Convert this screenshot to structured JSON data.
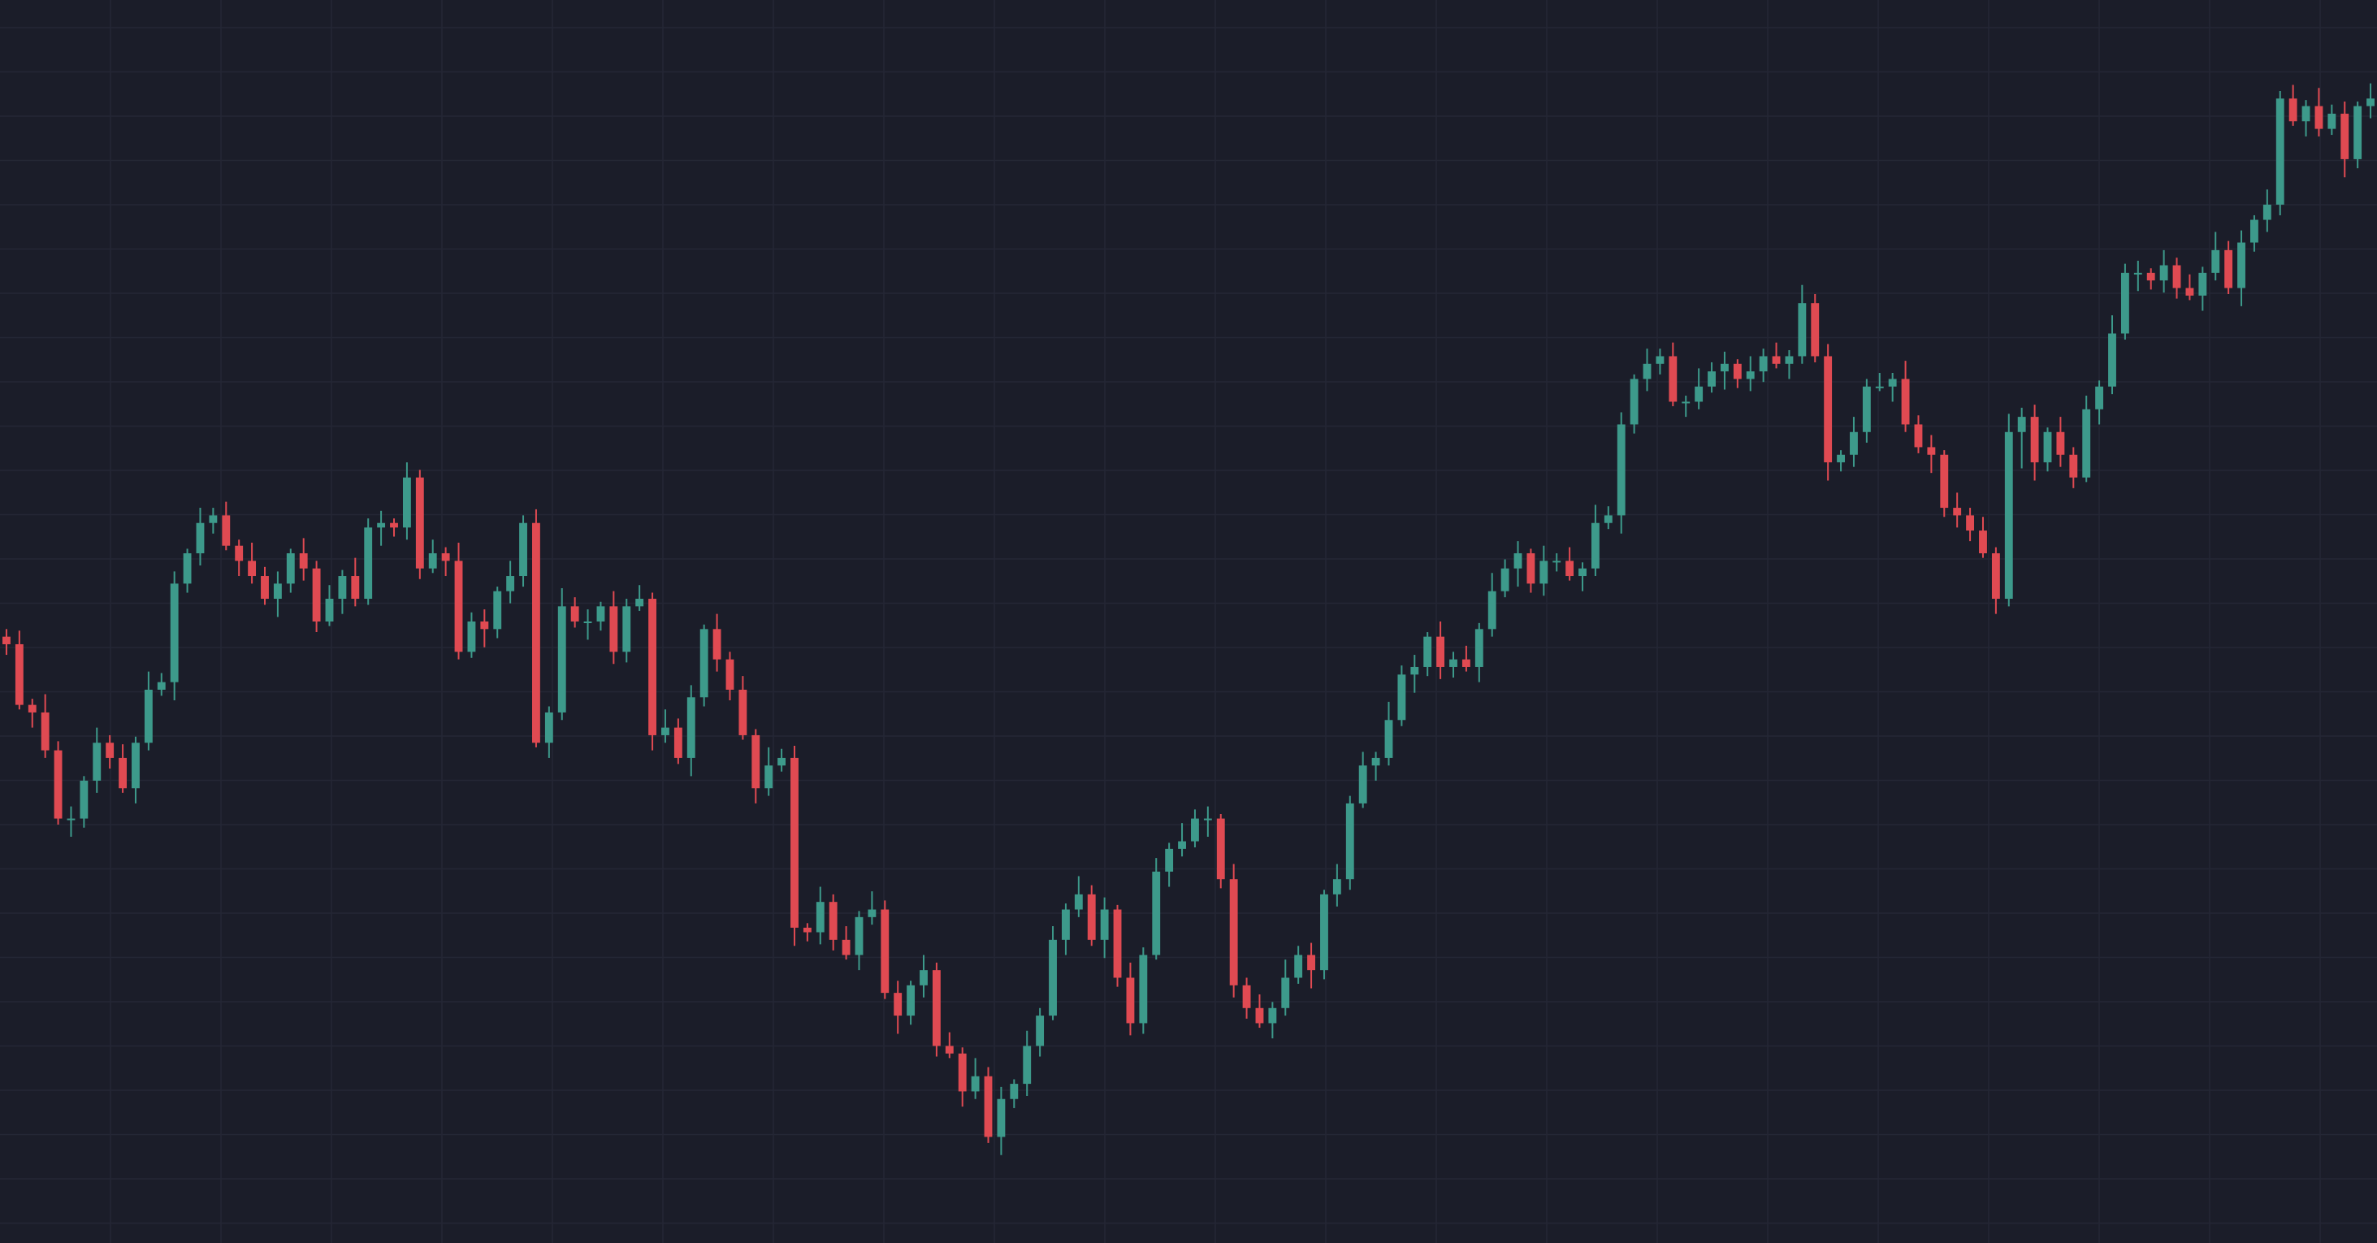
{
  "chart_data": {
    "type": "candlestick",
    "up_color": "#3d9a8b",
    "down_color": "#e04a52",
    "grid": true,
    "ylim": [
      0,
      820
    ],
    "open": [
      400,
      395,
      355,
      350,
      325,
      280,
      280,
      305,
      330,
      320,
      300,
      330,
      365,
      370,
      435,
      455,
      475,
      480,
      460,
      450,
      440,
      425,
      435,
      455,
      445,
      410,
      425,
      440,
      425,
      472,
      475,
      472,
      505,
      445,
      455,
      450,
      390,
      410,
      405,
      430,
      440,
      475,
      330,
      350,
      420,
      410,
      410,
      420,
      390,
      420,
      425,
      335,
      340,
      320,
      360,
      405,
      385,
      365,
      335,
      300,
      315,
      320,
      208,
      205,
      225,
      200,
      190,
      215,
      220,
      165,
      150,
      170,
      180,
      130,
      125,
      100,
      110,
      70,
      95,
      105,
      130,
      150,
      200,
      220,
      230,
      200,
      220,
      175,
      145,
      190,
      245,
      260,
      265,
      280,
      280,
      240,
      170,
      155,
      145,
      155,
      175,
      190,
      180,
      230,
      240,
      290,
      315,
      320,
      345,
      375,
      380,
      400,
      380,
      385,
      380,
      405,
      430,
      445,
      455,
      435,
      450,
      450,
      440,
      445,
      475,
      480,
      540,
      570,
      580,
      585,
      555,
      555,
      565,
      575,
      580,
      570,
      575,
      585,
      580,
      585,
      620,
      585,
      515,
      520,
      535,
      565,
      565,
      570,
      540,
      525,
      520,
      485,
      480,
      470,
      455,
      425,
      535,
      545,
      515,
      535,
      520,
      505,
      550,
      565,
      600,
      640,
      640,
      635,
      645,
      630,
      625,
      640,
      655,
      630,
      660,
      675,
      685,
      755,
      740,
      750,
      735,
      745,
      715,
      750
    ],
    "high": [
      405,
      404,
      359,
      362,
      331,
      288,
      308,
      340,
      335,
      329,
      334,
      377,
      376,
      443,
      458,
      485,
      485,
      489,
      464,
      462,
      446,
      443,
      458,
      465,
      450,
      434,
      444,
      452,
      478,
      483,
      478,
      515,
      510,
      464,
      459,
      462,
      416,
      418,
      433,
      450,
      480,
      484,
      354,
      432,
      426,
      418,
      423,
      430,
      425,
      434,
      429,
      352,
      346,
      368,
      408,
      415,
      390,
      374,
      339,
      327,
      326,
      328,
      211,
      235,
      230,
      209,
      219,
      232,
      226,
      173,
      173,
      190,
      185,
      139,
      129,
      122,
      116,
      103,
      108,
      140,
      155,
      209,
      224,
      242,
      236,
      228,
      223,
      185,
      195,
      254,
      264,
      277,
      286,
      288,
      283,
      250,
      175,
      164,
      159,
      187,
      196,
      198,
      233,
      250,
      295,
      324,
      324,
      357,
      381,
      388,
      403,
      410,
      390,
      394,
      409,
      442,
      451,
      463,
      458,
      460,
      455,
      459,
      449,
      487,
      486,
      548,
      573,
      590,
      590,
      594,
      559,
      577,
      581,
      588,
      583,
      585,
      590,
      594,
      589,
      632,
      626,
      593,
      523,
      545,
      570,
      574,
      574,
      582,
      546,
      533,
      523,
      495,
      485,
      479,
      459,
      547,
      551,
      553,
      538,
      545,
      525,
      559,
      569,
      612,
      646,
      648,
      643,
      655,
      650,
      639,
      644,
      667,
      661,
      668,
      678,
      695,
      760,
      764,
      754,
      762,
      751,
      753,
      753,
      765
    ],
    "low": [
      388,
      352,
      340,
      320,
      276,
      268,
      274,
      297,
      313,
      297,
      290,
      325,
      361,
      358,
      429,
      447,
      468,
      457,
      440,
      435,
      421,
      413,
      429,
      437,
      403,
      407,
      415,
      420,
      421,
      460,
      466,
      464,
      438,
      442,
      440,
      385,
      386,
      393,
      399,
      422,
      433,
      327,
      320,
      345,
      406,
      398,
      404,
      382,
      383,
      417,
      325,
      330,
      316,
      308,
      354,
      377,
      358,
      332,
      290,
      295,
      311,
      196,
      199,
      197,
      193,
      187,
      180,
      210,
      161,
      138,
      144,
      162,
      123,
      122,
      90,
      95,
      66,
      58,
      89,
      97,
      123,
      147,
      190,
      215,
      196,
      188,
      169,
      137,
      138,
      187,
      235,
      255,
      261,
      268,
      234,
      162,
      148,
      142,
      135,
      150,
      171,
      168,
      174,
      222,
      233,
      287,
      305,
      315,
      341,
      363,
      374,
      372,
      373,
      377,
      370,
      400,
      426,
      433,
      429,
      427,
      443,
      437,
      430,
      440,
      471,
      468,
      534,
      562,
      573,
      552,
      545,
      550,
      561,
      563,
      564,
      562,
      568,
      577,
      570,
      580,
      581,
      503,
      509,
      512,
      528,
      562,
      555,
      535,
      521,
      508,
      479,
      472,
      463,
      452,
      415,
      420,
      511,
      503,
      509,
      512,
      498,
      502,
      540,
      560,
      596,
      628,
      629,
      627,
      623,
      622,
      615,
      635,
      626,
      618,
      654,
      667,
      678,
      737,
      730,
      730,
      731,
      703,
      709,
      742
    ],
    "close": [
      395,
      355,
      350,
      325,
      280,
      280,
      305,
      330,
      320,
      300,
      330,
      365,
      370,
      435,
      455,
      475,
      480,
      460,
      450,
      440,
      425,
      435,
      455,
      445,
      410,
      425,
      440,
      425,
      472,
      475,
      472,
      505,
      445,
      455,
      450,
      390,
      410,
      405,
      430,
      440,
      475,
      330,
      350,
      420,
      410,
      410,
      420,
      390,
      420,
      425,
      335,
      340,
      320,
      360,
      405,
      385,
      365,
      335,
      300,
      315,
      320,
      208,
      205,
      225,
      200,
      190,
      215,
      220,
      165,
      150,
      170,
      180,
      130,
      125,
      100,
      110,
      70,
      95,
      105,
      130,
      150,
      200,
      220,
      230,
      200,
      220,
      175,
      145,
      190,
      245,
      260,
      265,
      280,
      280,
      240,
      170,
      155,
      145,
      155,
      175,
      190,
      180,
      230,
      240,
      290,
      315,
      320,
      345,
      375,
      380,
      400,
      380,
      385,
      380,
      405,
      430,
      445,
      455,
      435,
      450,
      450,
      440,
      445,
      475,
      480,
      540,
      570,
      580,
      585,
      555,
      555,
      565,
      575,
      580,
      570,
      575,
      585,
      580,
      585,
      620,
      585,
      515,
      520,
      535,
      565,
      565,
      570,
      540,
      525,
      520,
      485,
      480,
      470,
      455,
      425,
      535,
      545,
      515,
      535,
      520,
      505,
      550,
      565,
      600,
      640,
      640,
      635,
      645,
      630,
      625,
      640,
      655,
      630,
      660,
      675,
      685,
      755,
      740,
      750,
      735,
      745,
      715,
      750,
      755
    ]
  }
}
